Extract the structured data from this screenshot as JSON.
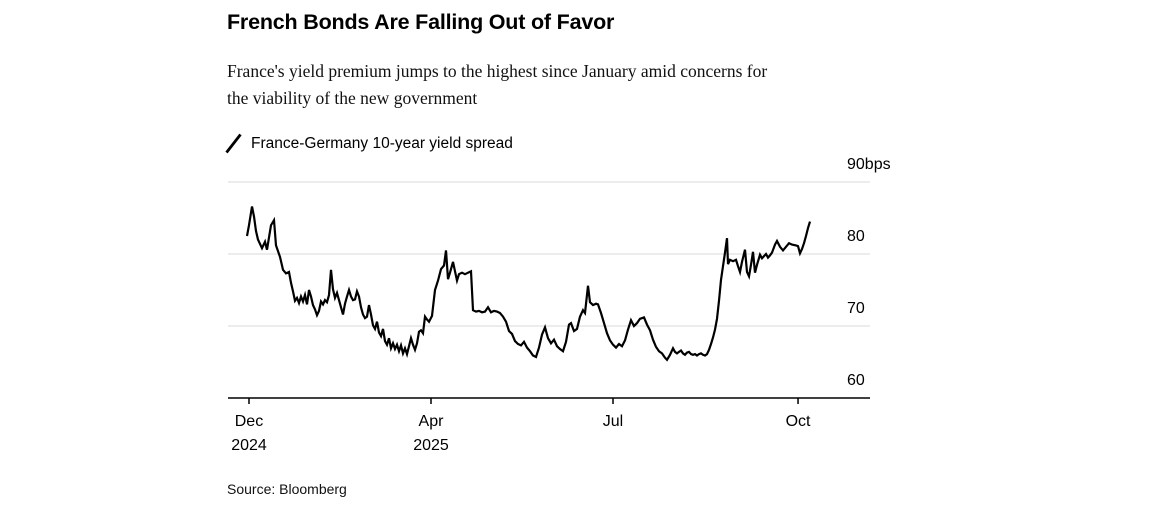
{
  "header": {
    "title": "French Bonds Are Falling Out of Favor",
    "subtitle_lines": [
      "France's yield premium jumps to the highest since January amid concerns for",
      "the viability of the new government"
    ]
  },
  "legend": {
    "icon": "line-slash-icon",
    "label": "France-Germany 10-year yield spread"
  },
  "footer": {
    "source": "Source: Bloomberg"
  },
  "colors": {
    "background": "#ffffff",
    "line": "#000000",
    "grid": "#d8d8d8",
    "axis": "#000000",
    "text": "#000000"
  },
  "chart_data": {
    "type": "line",
    "title": "French Bonds Are Falling Out of Favor",
    "series_name": "France-Germany 10-year yield spread",
    "unit": "bps",
    "ylim": [
      60,
      90
    ],
    "grid": "horizontal",
    "legend_position": "top-left",
    "y_ticks": [
      {
        "value": 90,
        "label": "90bps"
      },
      {
        "value": 80,
        "label": "80"
      },
      {
        "value": 70,
        "label": "70"
      },
      {
        "value": 60,
        "label": "60"
      }
    ],
    "x_ticks": [
      {
        "pos": 0.0327,
        "label": "Dec",
        "sublabel": "2024"
      },
      {
        "pos": 0.3162,
        "label": "Apr",
        "sublabel": "2025"
      },
      {
        "pos": 0.5997,
        "label": "Jul",
        "sublabel": ""
      },
      {
        "pos": 0.8879,
        "label": "Oct",
        "sublabel": ""
      }
    ],
    "points": [
      [
        0.0296,
        82.5
      ],
      [
        0.0327,
        84.0
      ],
      [
        0.0374,
        86.6
      ],
      [
        0.0405,
        85.2
      ],
      [
        0.0436,
        83.2
      ],
      [
        0.0467,
        82.0
      ],
      [
        0.053,
        80.8
      ],
      [
        0.0576,
        81.7
      ],
      [
        0.0607,
        80.6
      ],
      [
        0.067,
        84.0
      ],
      [
        0.0717,
        84.7
      ],
      [
        0.0748,
        81.2
      ],
      [
        0.081,
        79.6
      ],
      [
        0.0857,
        77.8
      ],
      [
        0.0903,
        77.3
      ],
      [
        0.095,
        77.5
      ],
      [
        0.0981,
        76.0
      ],
      [
        0.1012,
        74.8
      ],
      [
        0.1044,
        73.5
      ],
      [
        0.1075,
        73.9
      ],
      [
        0.1106,
        73.2
      ],
      [
        0.1137,
        74.1
      ],
      [
        0.1168,
        73.4
      ],
      [
        0.1199,
        74.3
      ],
      [
        0.1231,
        73.0
      ],
      [
        0.1262,
        75.0
      ],
      [
        0.1293,
        74.1
      ],
      [
        0.1324,
        72.9
      ],
      [
        0.1355,
        72.3
      ],
      [
        0.1386,
        71.5
      ],
      [
        0.1417,
        72.1
      ],
      [
        0.1449,
        73.4
      ],
      [
        0.148,
        73.0
      ],
      [
        0.1511,
        73.6
      ],
      [
        0.1542,
        73.3
      ],
      [
        0.1573,
        74.3
      ],
      [
        0.1604,
        77.8
      ],
      [
        0.1636,
        75.1
      ],
      [
        0.1667,
        73.9
      ],
      [
        0.1698,
        74.6
      ],
      [
        0.1729,
        73.6
      ],
      [
        0.176,
        72.6
      ],
      [
        0.1791,
        71.6
      ],
      [
        0.1822,
        73.1
      ],
      [
        0.1854,
        74.1
      ],
      [
        0.1885,
        75.0
      ],
      [
        0.1916,
        74.1
      ],
      [
        0.1947,
        73.6
      ],
      [
        0.1978,
        73.7
      ],
      [
        0.2009,
        74.8
      ],
      [
        0.204,
        74.1
      ],
      [
        0.2072,
        72.6
      ],
      [
        0.2103,
        71.6
      ],
      [
        0.2134,
        71.1
      ],
      [
        0.2165,
        71.3
      ],
      [
        0.2196,
        72.9
      ],
      [
        0.2227,
        71.6
      ],
      [
        0.2259,
        70.1
      ],
      [
        0.229,
        69.6
      ],
      [
        0.2321,
        70.6
      ],
      [
        0.2352,
        69.1
      ],
      [
        0.2383,
        68.6
      ],
      [
        0.2414,
        69.6
      ],
      [
        0.2445,
        67.9
      ],
      [
        0.2477,
        67.4
      ],
      [
        0.2508,
        68.3
      ],
      [
        0.2539,
        66.9
      ],
      [
        0.257,
        67.6
      ],
      [
        0.2601,
        66.8
      ],
      [
        0.2632,
        67.4
      ],
      [
        0.2664,
        66.5
      ],
      [
        0.2695,
        67.3
      ],
      [
        0.2726,
        66.2
      ],
      [
        0.2757,
        66.9
      ],
      [
        0.2788,
        66.1
      ],
      [
        0.2819,
        67.2
      ],
      [
        0.285,
        68.3
      ],
      [
        0.2882,
        67.4
      ],
      [
        0.2913,
        66.7
      ],
      [
        0.2944,
        67.6
      ],
      [
        0.2975,
        69.2
      ],
      [
        0.3006,
        69.4
      ],
      [
        0.3037,
        69.0
      ],
      [
        0.3069,
        71.3
      ],
      [
        0.31,
        70.9
      ],
      [
        0.3131,
        70.6
      ],
      [
        0.3178,
        71.4
      ],
      [
        0.3224,
        75.0
      ],
      [
        0.3271,
        76.3
      ],
      [
        0.3318,
        77.9
      ],
      [
        0.3364,
        78.4
      ],
      [
        0.3396,
        80.5
      ],
      [
        0.3427,
        76.5
      ],
      [
        0.3458,
        77.4
      ],
      [
        0.3505,
        78.9
      ],
      [
        0.3536,
        77.6
      ],
      [
        0.3567,
        76.3
      ],
      [
        0.3598,
        77.2
      ],
      [
        0.3645,
        77.4
      ],
      [
        0.3692,
        77.2
      ],
      [
        0.3738,
        77.4
      ],
      [
        0.3785,
        77.6
      ],
      [
        0.3816,
        72.2
      ],
      [
        0.3863,
        72.0
      ],
      [
        0.391,
        72.1
      ],
      [
        0.3956,
        71.9
      ],
      [
        0.4003,
        72.0
      ],
      [
        0.405,
        72.6
      ],
      [
        0.4097,
        71.9
      ],
      [
        0.4143,
        72.1
      ],
      [
        0.419,
        72.0
      ],
      [
        0.4237,
        71.8
      ],
      [
        0.4283,
        71.3
      ],
      [
        0.433,
        70.6
      ],
      [
        0.4377,
        69.3
      ],
      [
        0.4424,
        68.9
      ],
      [
        0.447,
        67.9
      ],
      [
        0.4517,
        67.5
      ],
      [
        0.4564,
        67.3
      ],
      [
        0.4611,
        67.8
      ],
      [
        0.4657,
        67.0
      ],
      [
        0.4704,
        66.5
      ],
      [
        0.4751,
        65.9
      ],
      [
        0.4798,
        65.7
      ],
      [
        0.4844,
        67.0
      ],
      [
        0.4891,
        68.8
      ],
      [
        0.4938,
        69.8
      ],
      [
        0.4984,
        68.3
      ],
      [
        0.5031,
        67.6
      ],
      [
        0.5078,
        68.1
      ],
      [
        0.5125,
        67.2
      ],
      [
        0.5171,
        66.8
      ],
      [
        0.5218,
        66.5
      ],
      [
        0.5265,
        67.8
      ],
      [
        0.5312,
        70.2
      ],
      [
        0.5343,
        70.4
      ],
      [
        0.5389,
        69.3
      ],
      [
        0.5436,
        69.6
      ],
      [
        0.5483,
        71.3
      ],
      [
        0.553,
        72.2
      ],
      [
        0.5561,
        71.8
      ],
      [
        0.5607,
        75.6
      ],
      [
        0.5639,
        73.3
      ],
      [
        0.5685,
        72.9
      ],
      [
        0.5732,
        73.1
      ],
      [
        0.5763,
        73.0
      ],
      [
        0.581,
        71.8
      ],
      [
        0.5857,
        70.4
      ],
      [
        0.5903,
        69.0
      ],
      [
        0.595,
        68.0
      ],
      [
        0.5997,
        67.4
      ],
      [
        0.6044,
        67.0
      ],
      [
        0.609,
        67.5
      ],
      [
        0.6137,
        67.2
      ],
      [
        0.6184,
        68.0
      ],
      [
        0.6231,
        69.5
      ],
      [
        0.6277,
        70.8
      ],
      [
        0.6324,
        70.0
      ],
      [
        0.6371,
        70.4
      ],
      [
        0.6417,
        71.0
      ],
      [
        0.648,
        71.2
      ],
      [
        0.6526,
        70.2
      ],
      [
        0.6573,
        69.4
      ],
      [
        0.662,
        68.1
      ],
      [
        0.6667,
        67.1
      ],
      [
        0.6713,
        66.5
      ],
      [
        0.676,
        66.2
      ],
      [
        0.6807,
        65.6
      ],
      [
        0.6838,
        65.3
      ],
      [
        0.6885,
        66.0
      ],
      [
        0.6931,
        66.9
      ],
      [
        0.6963,
        66.4
      ],
      [
        0.6994,
        66.2
      ],
      [
        0.7025,
        66.4
      ],
      [
        0.7056,
        66.6
      ],
      [
        0.7087,
        66.2
      ],
      [
        0.7118,
        66.0
      ],
      [
        0.715,
        66.3
      ],
      [
        0.7181,
        66.4
      ],
      [
        0.7212,
        66.1
      ],
      [
        0.7243,
        66.0
      ],
      [
        0.7274,
        66.1
      ],
      [
        0.7305,
        65.9
      ],
      [
        0.7336,
        66.1
      ],
      [
        0.7368,
        66.2
      ],
      [
        0.7399,
        66.0
      ],
      [
        0.743,
        65.9
      ],
      [
        0.7461,
        66.1
      ],
      [
        0.7492,
        66.7
      ],
      [
        0.7523,
        67.5
      ],
      [
        0.7554,
        68.4
      ],
      [
        0.7586,
        69.5
      ],
      [
        0.7617,
        71.0
      ],
      [
        0.7648,
        73.5
      ],
      [
        0.7679,
        76.4
      ],
      [
        0.771,
        78.3
      ],
      [
        0.7741,
        80.2
      ],
      [
        0.7773,
        82.2
      ],
      [
        0.7788,
        78.6
      ],
      [
        0.7819,
        79.2
      ],
      [
        0.7866,
        79.0
      ],
      [
        0.7913,
        79.2
      ],
      [
        0.7944,
        78.3
      ],
      [
        0.7975,
        77.5
      ],
      [
        0.8006,
        78.9
      ],
      [
        0.8053,
        80.6
      ],
      [
        0.8084,
        77.5
      ],
      [
        0.8115,
        76.9
      ],
      [
        0.8146,
        78.5
      ],
      [
        0.8178,
        80.3
      ],
      [
        0.8209,
        77.4
      ],
      [
        0.824,
        78.5
      ],
      [
        0.8287,
        79.9
      ],
      [
        0.8318,
        79.4
      ],
      [
        0.838,
        80.0
      ],
      [
        0.8411,
        79.5
      ],
      [
        0.8442,
        79.8
      ],
      [
        0.8474,
        80.2
      ],
      [
        0.852,
        81.3
      ],
      [
        0.8551,
        81.8
      ],
      [
        0.8598,
        81.0
      ],
      [
        0.8645,
        80.5
      ],
      [
        0.8692,
        81.0
      ],
      [
        0.8738,
        81.5
      ],
      [
        0.8785,
        81.3
      ],
      [
        0.8847,
        81.2
      ],
      [
        0.8879,
        81.1
      ],
      [
        0.891,
        80.1
      ],
      [
        0.8941,
        80.7
      ],
      [
        0.8972,
        81.5
      ],
      [
        0.9003,
        82.5
      ],
      [
        0.9034,
        83.6
      ],
      [
        0.9065,
        84.5
      ]
    ]
  }
}
